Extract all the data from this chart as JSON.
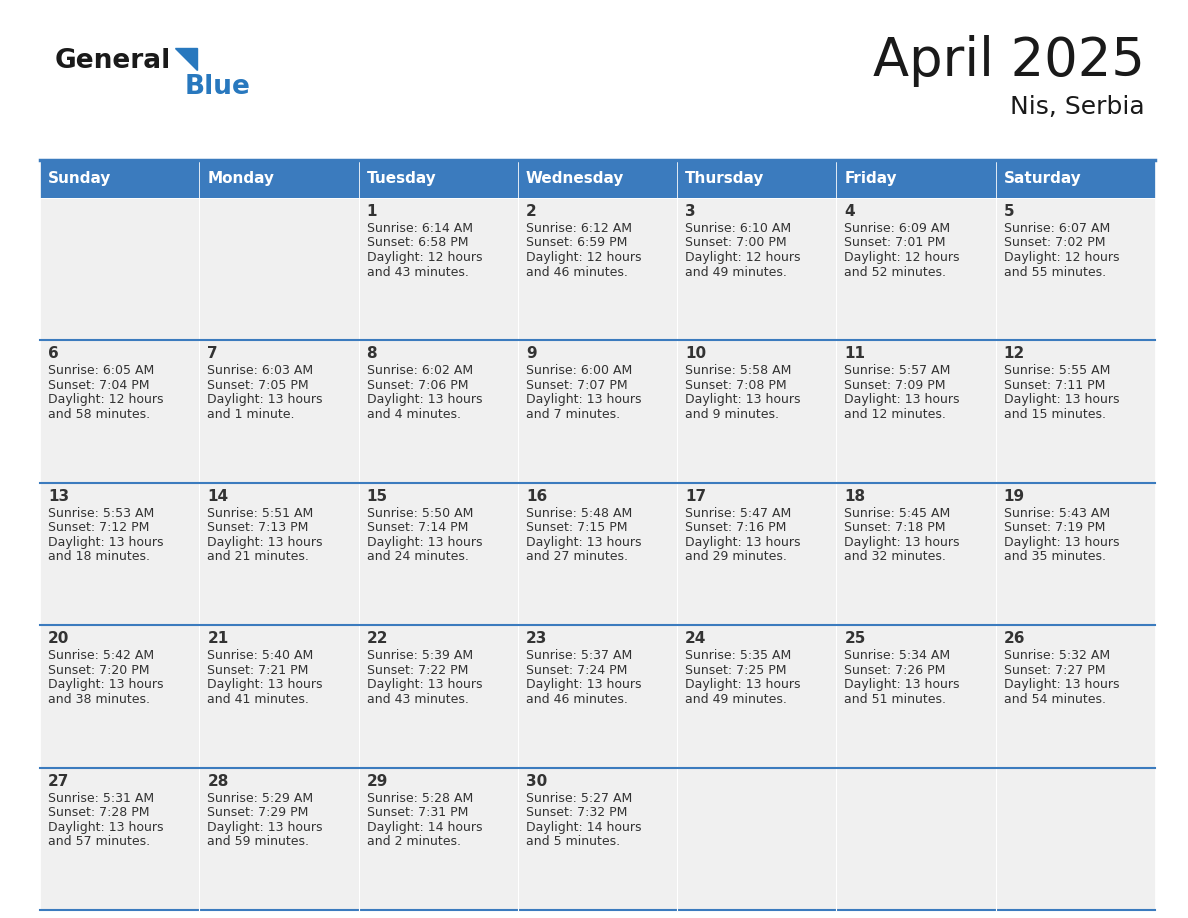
{
  "title": "April 2025",
  "subtitle": "Nis, Serbia",
  "header_color": "#3B7BBE",
  "header_text_color": "#FFFFFF",
  "cell_bg_color": "#F0F0F0",
  "text_color": "#333333",
  "line_color": "#3B7BBE",
  "logo_general_color": "#1a1a1a",
  "logo_blue_color": "#2878BE",
  "day_names": [
    "Sunday",
    "Monday",
    "Tuesday",
    "Wednesday",
    "Thursday",
    "Friday",
    "Saturday"
  ],
  "weeks": [
    [
      {
        "date": "",
        "sunrise": "",
        "sunset": "",
        "daylight": ""
      },
      {
        "date": "",
        "sunrise": "",
        "sunset": "",
        "daylight": ""
      },
      {
        "date": "1",
        "sunrise": "6:14 AM",
        "sunset": "6:58 PM",
        "daylight": "12 hours\nand 43 minutes."
      },
      {
        "date": "2",
        "sunrise": "6:12 AM",
        "sunset": "6:59 PM",
        "daylight": "12 hours\nand 46 minutes."
      },
      {
        "date": "3",
        "sunrise": "6:10 AM",
        "sunset": "7:00 PM",
        "daylight": "12 hours\nand 49 minutes."
      },
      {
        "date": "4",
        "sunrise": "6:09 AM",
        "sunset": "7:01 PM",
        "daylight": "12 hours\nand 52 minutes."
      },
      {
        "date": "5",
        "sunrise": "6:07 AM",
        "sunset": "7:02 PM",
        "daylight": "12 hours\nand 55 minutes."
      }
    ],
    [
      {
        "date": "6",
        "sunrise": "6:05 AM",
        "sunset": "7:04 PM",
        "daylight": "12 hours\nand 58 minutes."
      },
      {
        "date": "7",
        "sunrise": "6:03 AM",
        "sunset": "7:05 PM",
        "daylight": "13 hours\nand 1 minute."
      },
      {
        "date": "8",
        "sunrise": "6:02 AM",
        "sunset": "7:06 PM",
        "daylight": "13 hours\nand 4 minutes."
      },
      {
        "date": "9",
        "sunrise": "6:00 AM",
        "sunset": "7:07 PM",
        "daylight": "13 hours\nand 7 minutes."
      },
      {
        "date": "10",
        "sunrise": "5:58 AM",
        "sunset": "7:08 PM",
        "daylight": "13 hours\nand 9 minutes."
      },
      {
        "date": "11",
        "sunrise": "5:57 AM",
        "sunset": "7:09 PM",
        "daylight": "13 hours\nand 12 minutes."
      },
      {
        "date": "12",
        "sunrise": "5:55 AM",
        "sunset": "7:11 PM",
        "daylight": "13 hours\nand 15 minutes."
      }
    ],
    [
      {
        "date": "13",
        "sunrise": "5:53 AM",
        "sunset": "7:12 PM",
        "daylight": "13 hours\nand 18 minutes."
      },
      {
        "date": "14",
        "sunrise": "5:51 AM",
        "sunset": "7:13 PM",
        "daylight": "13 hours\nand 21 minutes."
      },
      {
        "date": "15",
        "sunrise": "5:50 AM",
        "sunset": "7:14 PM",
        "daylight": "13 hours\nand 24 minutes."
      },
      {
        "date": "16",
        "sunrise": "5:48 AM",
        "sunset": "7:15 PM",
        "daylight": "13 hours\nand 27 minutes."
      },
      {
        "date": "17",
        "sunrise": "5:47 AM",
        "sunset": "7:16 PM",
        "daylight": "13 hours\nand 29 minutes."
      },
      {
        "date": "18",
        "sunrise": "5:45 AM",
        "sunset": "7:18 PM",
        "daylight": "13 hours\nand 32 minutes."
      },
      {
        "date": "19",
        "sunrise": "5:43 AM",
        "sunset": "7:19 PM",
        "daylight": "13 hours\nand 35 minutes."
      }
    ],
    [
      {
        "date": "20",
        "sunrise": "5:42 AM",
        "sunset": "7:20 PM",
        "daylight": "13 hours\nand 38 minutes."
      },
      {
        "date": "21",
        "sunrise": "5:40 AM",
        "sunset": "7:21 PM",
        "daylight": "13 hours\nand 41 minutes."
      },
      {
        "date": "22",
        "sunrise": "5:39 AM",
        "sunset": "7:22 PM",
        "daylight": "13 hours\nand 43 minutes."
      },
      {
        "date": "23",
        "sunrise": "5:37 AM",
        "sunset": "7:24 PM",
        "daylight": "13 hours\nand 46 minutes."
      },
      {
        "date": "24",
        "sunrise": "5:35 AM",
        "sunset": "7:25 PM",
        "daylight": "13 hours\nand 49 minutes."
      },
      {
        "date": "25",
        "sunrise": "5:34 AM",
        "sunset": "7:26 PM",
        "daylight": "13 hours\nand 51 minutes."
      },
      {
        "date": "26",
        "sunrise": "5:32 AM",
        "sunset": "7:27 PM",
        "daylight": "13 hours\nand 54 minutes."
      }
    ],
    [
      {
        "date": "27",
        "sunrise": "5:31 AM",
        "sunset": "7:28 PM",
        "daylight": "13 hours\nand 57 minutes."
      },
      {
        "date": "28",
        "sunrise": "5:29 AM",
        "sunset": "7:29 PM",
        "daylight": "13 hours\nand 59 minutes."
      },
      {
        "date": "29",
        "sunrise": "5:28 AM",
        "sunset": "7:31 PM",
        "daylight": "14 hours\nand 2 minutes."
      },
      {
        "date": "30",
        "sunrise": "5:27 AM",
        "sunset": "7:32 PM",
        "daylight": "14 hours\nand 5 minutes."
      },
      {
        "date": "",
        "sunrise": "",
        "sunset": "",
        "daylight": ""
      },
      {
        "date": "",
        "sunrise": "",
        "sunset": "",
        "daylight": ""
      },
      {
        "date": "",
        "sunrise": "",
        "sunset": "",
        "daylight": ""
      }
    ]
  ],
  "title_fontsize": 38,
  "subtitle_fontsize": 18,
  "dayname_fontsize": 11,
  "date_fontsize": 11,
  "info_fontsize": 9
}
